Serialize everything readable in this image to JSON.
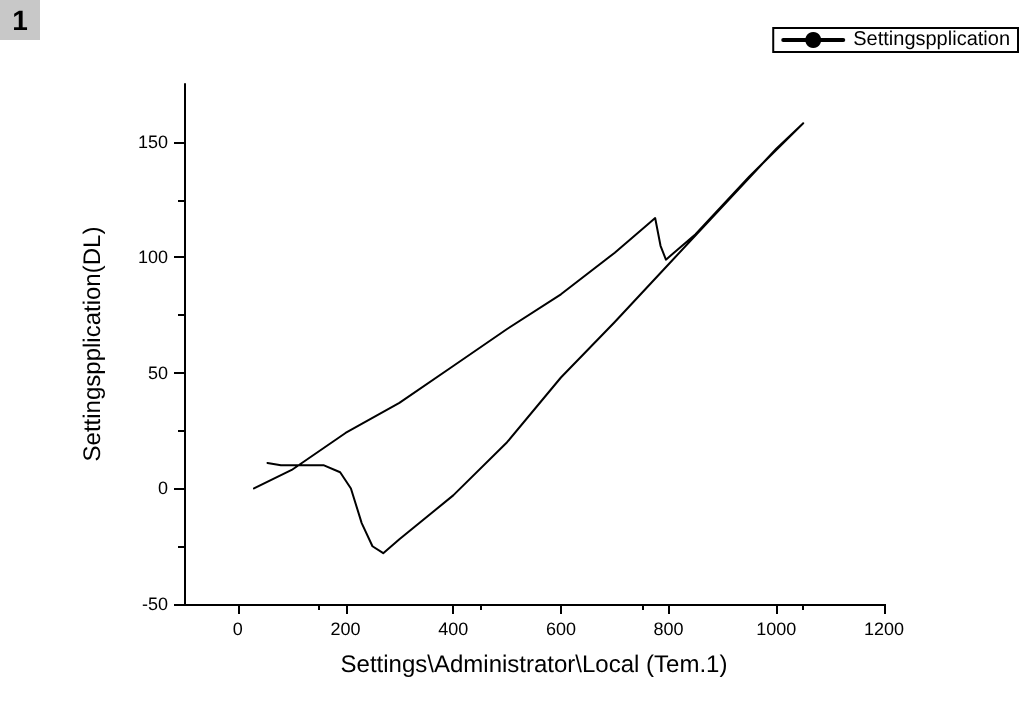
{
  "chart_data": {
    "type": "line",
    "xlabel": "Settings\\Administrator\\Local (Tem.1)",
    "ylabel": "Settingspplication(DL)",
    "annotations": [
      "1"
    ],
    "series": [
      {
        "name": "Settingspplication",
        "color": "#000000",
        "x": [
          30,
          100,
          200,
          300,
          400,
          500,
          600,
          700,
          760,
          775,
          785,
          795,
          850,
          950,
          1050,
          1000,
          900,
          800,
          700,
          600,
          500,
          400,
          300,
          270,
          250,
          230,
          210,
          190,
          160,
          120,
          80,
          55
        ],
        "values": [
          0,
          8,
          24,
          37,
          53,
          69,
          84,
          102,
          114,
          117,
          105,
          99,
          110,
          135,
          158,
          147,
          122,
          97,
          72,
          48,
          20,
          -3,
          -22,
          -28,
          -25,
          -15,
          0,
          7,
          10,
          10,
          10,
          11
        ]
      }
    ],
    "xlim": [
      -100,
      1200
    ],
    "xticks": [
      0,
      200,
      400,
      600,
      800,
      1000,
      1200
    ],
    "ylim": [
      -50,
      175
    ],
    "yticks": [
      -50,
      0,
      50,
      100,
      150
    ],
    "grid": false,
    "legend": "top right",
    "marker": "none",
    "line_style": "solid"
  }
}
